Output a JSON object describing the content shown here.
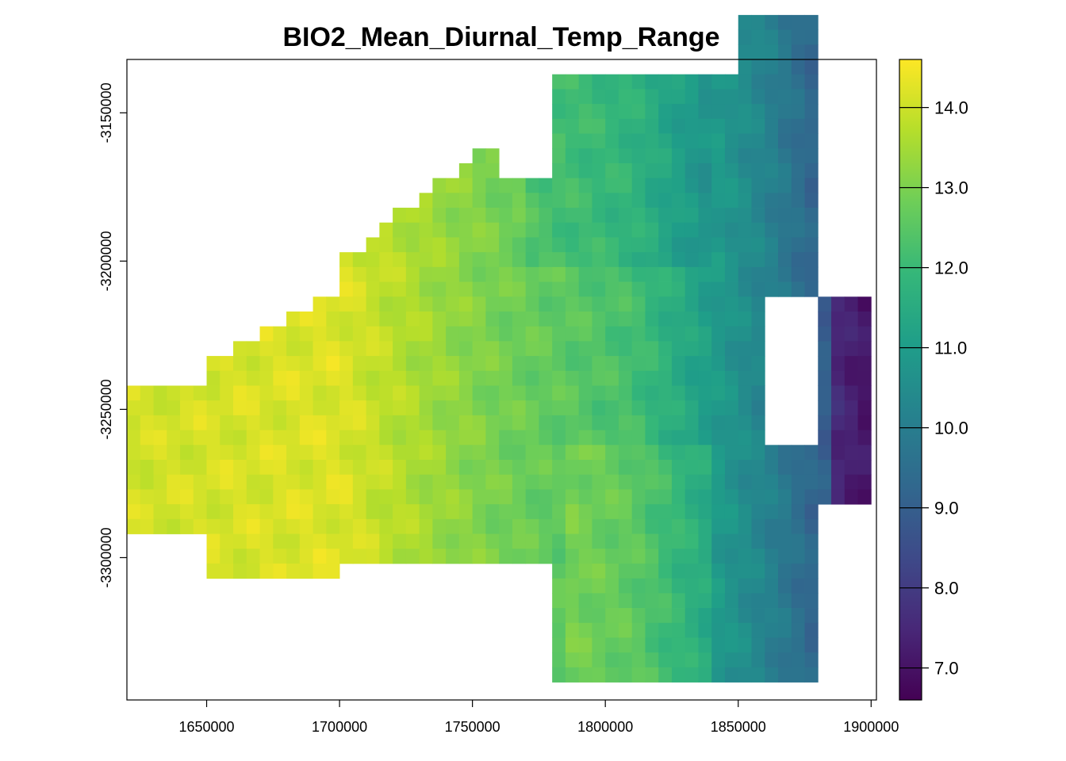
{
  "chart_data": {
    "type": "heatmap",
    "title": "BIO2_Mean_Diurnal_Temp_Range",
    "xlabel": "",
    "ylabel": "",
    "xlim": [
      1620000,
      1902000
    ],
    "ylim": [
      -3348000,
      -3132000
    ],
    "x_ticks": [
      1650000,
      1700000,
      1750000,
      1800000,
      1850000,
      1900000
    ],
    "x_tick_labels": [
      "1650000",
      "1700000",
      "1750000",
      "1800000",
      "1850000",
      "1900000"
    ],
    "y_ticks": [
      -3150000,
      -3200000,
      -3250000,
      -3300000
    ],
    "y_tick_labels": [
      "-3150000",
      "-3200000",
      "-3250000",
      "-3300000"
    ],
    "colorbar": {
      "min": 6.6,
      "max": 14.6,
      "ticks": [
        7,
        8,
        9,
        10,
        11,
        12,
        13,
        14
      ],
      "tick_labels": [
        "7.0",
        "8.0",
        "9.0",
        "10.0",
        "11.0",
        "12.0",
        "13.0",
        "14.0"
      ],
      "palette": [
        "#440154",
        "#482878",
        "#3e4a89",
        "#31688e",
        "#26828e",
        "#1f9e89",
        "#35b779",
        "#6ece58",
        "#b5de2b",
        "#fde725"
      ]
    },
    "grid": false,
    "cell_size": 5000,
    "grid_origin": [
      1620000,
      -3112000
    ],
    "raster_rows": [
      "..........................................................................||||||||||||||||||||||||||||||",
      "..........................................................................||||||||||||||||||||||||||||||"
    ]
  }
}
